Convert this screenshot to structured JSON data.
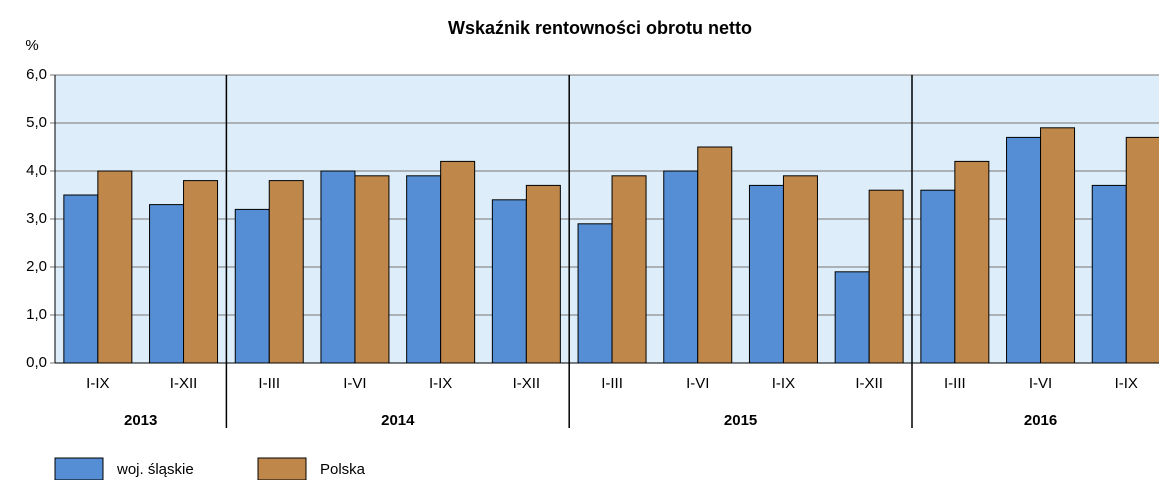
{
  "chart_data": {
    "type": "bar",
    "title": "Wskaźnik rentowności obrotu netto",
    "ylabel": "%",
    "categories": [
      "I-IX",
      "I-XII",
      "I-III",
      "I-VI",
      "I-IX",
      "I-XII",
      "I-III",
      "I-VI",
      "I-IX",
      "I-XII",
      "I-III",
      "I-VI",
      "I-IX"
    ],
    "groups": [
      {
        "label": "2013",
        "span": 2
      },
      {
        "label": "2014",
        "span": 4
      },
      {
        "label": "2015",
        "span": 4
      },
      {
        "label": "2016",
        "span": 3
      }
    ],
    "series": [
      {
        "name": "woj. śląskie",
        "color": "#558ed5",
        "values": [
          3.5,
          3.3,
          3.2,
          4.0,
          3.9,
          3.4,
          2.9,
          4.0,
          3.7,
          1.9,
          3.6,
          4.7,
          3.7
        ]
      },
      {
        "name": "Polska",
        "color": "#c0874b",
        "values": [
          4.0,
          3.8,
          3.8,
          3.9,
          4.2,
          3.7,
          3.9,
          4.5,
          3.9,
          3.6,
          4.2,
          4.9,
          4.7
        ]
      }
    ],
    "ylim": [
      0,
      6
    ],
    "yticks": [
      {
        "value": 0,
        "label": "0,0"
      },
      {
        "value": 1,
        "label": "1,0"
      },
      {
        "value": 2,
        "label": "2,0"
      },
      {
        "value": 3,
        "label": "3,0"
      },
      {
        "value": 4,
        "label": "4,0"
      },
      {
        "value": 5,
        "label": "5,0"
      },
      {
        "value": 6,
        "label": "6,0"
      }
    ],
    "grid": true,
    "legend": "bottom-left"
  }
}
